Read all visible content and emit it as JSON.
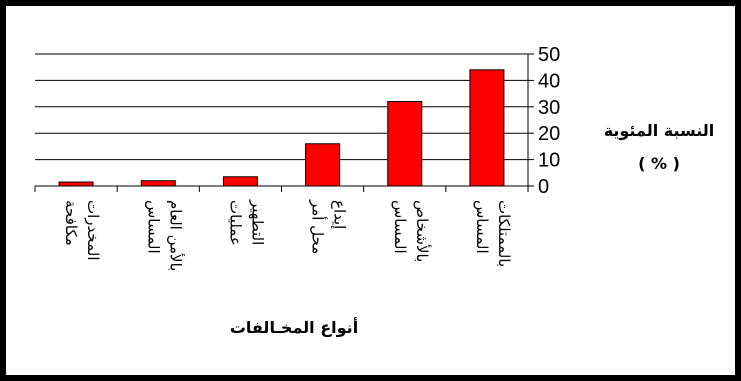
{
  "chart_data": {
    "type": "bar",
    "categories": [
      [
        "مكافحة",
        "المخدرات"
      ],
      [
        "المساس",
        "بالأمن العام"
      ],
      [
        "عمليات",
        "التطهير"
      ],
      [
        "محل أمر",
        "إيداع"
      ],
      [
        "المساس",
        "بالأشخاص"
      ],
      [
        "المساس",
        "بالممتلكات"
      ]
    ],
    "values": [
      1.5,
      2,
      3.5,
      16,
      32,
      44
    ],
    "ylim": [
      0,
      50
    ],
    "yticks": [
      0,
      10,
      20,
      30,
      40,
      50
    ],
    "ylabel_lines": [
      "النسبة المئوية",
      "( % )"
    ],
    "xlabel": "أنواع المخـالفات",
    "grid": true,
    "colors": {
      "bar": "#ff0000",
      "bar_edge": "#000000",
      "grid": "#000000"
    }
  }
}
